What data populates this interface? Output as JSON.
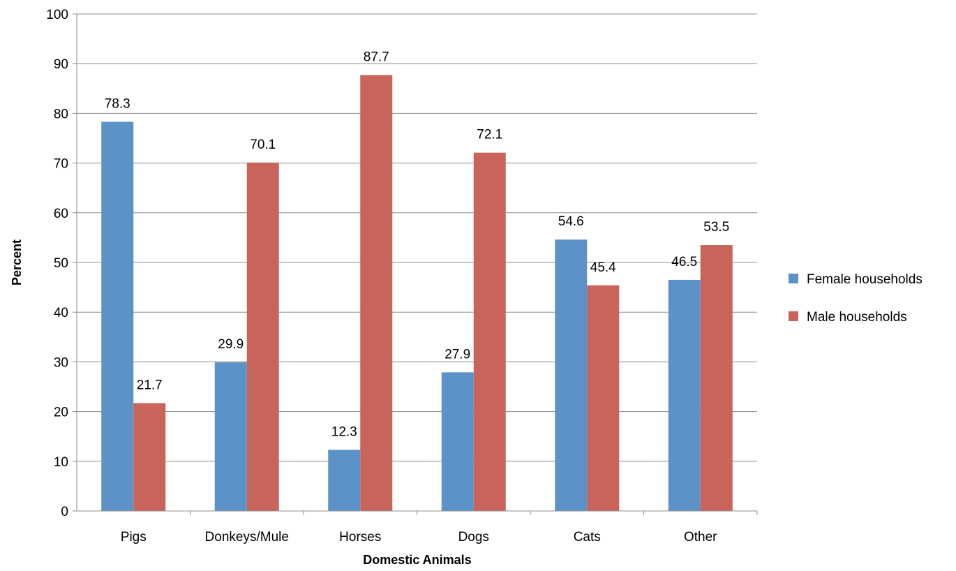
{
  "chart_data": {
    "type": "bar",
    "title": "",
    "xlabel": "Domestic Animals",
    "ylabel": "Percent",
    "ylim": [
      0,
      100
    ],
    "yticks": [
      0,
      10,
      20,
      30,
      40,
      50,
      60,
      70,
      80,
      90,
      100
    ],
    "grid": true,
    "legend_position": "right",
    "categories": [
      "Pigs",
      "Donkeys/Mule",
      "Horses",
      "Dogs",
      "Cats",
      "Other"
    ],
    "series": [
      {
        "name": "Female households",
        "color": "#5b93c9",
        "values": [
          78.3,
          29.9,
          12.3,
          27.9,
          54.6,
          46.5
        ],
        "labels": [
          "78.3",
          "29.9",
          "12.3",
          "27.9",
          "54.6",
          "46.5"
        ]
      },
      {
        "name": "Male households",
        "color": "#c9645b",
        "values": [
          21.7,
          70.1,
          87.7,
          72.1,
          45.4,
          53.5
        ],
        "labels": [
          "21.7",
          "70.1",
          "87.7",
          "72.1",
          "45.4",
          "53.5"
        ]
      }
    ]
  }
}
